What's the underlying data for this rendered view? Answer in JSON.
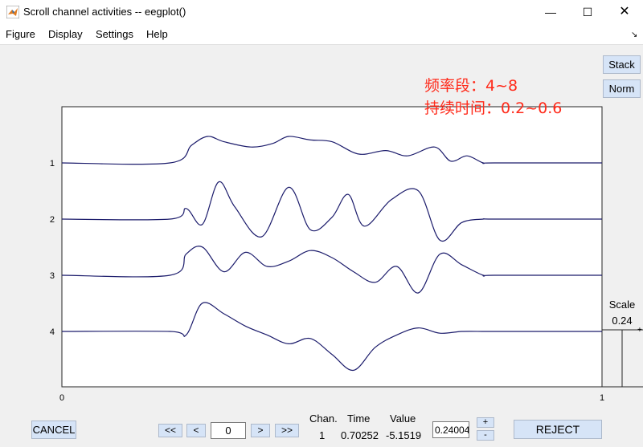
{
  "window": {
    "title": "Scroll channel activities -- eegplot()",
    "controls": {
      "minimize": "—",
      "maximize": "☐",
      "close": "✕"
    }
  },
  "menu": [
    "Figure",
    "Display",
    "Settings",
    "Help"
  ],
  "annotation": {
    "line1": "频率段：4~8",
    "line2": "持续时间：0.2~0.6",
    "color": "#ff2a1a"
  },
  "side_buttons": {
    "stack": "Stack",
    "norm": "Norm"
  },
  "scale": {
    "label": "Scale",
    "value": "0.24"
  },
  "controls": {
    "cancel": "CANCEL",
    "fast_back": "<<",
    "back": "<",
    "position": "0",
    "fwd": ">",
    "fast_fwd": ">>",
    "scale_input": "0.24004",
    "plus": "+",
    "minus": "-",
    "reject": "REJECT"
  },
  "info": {
    "chan_label": "Chan.",
    "time_label": "Time",
    "value_label": "Value",
    "chan": "1",
    "time": "0.70252",
    "value": "-5.1519"
  },
  "chart_data": {
    "type": "line",
    "xlim": [
      0,
      1
    ],
    "x_ticks": [
      "0",
      "1"
    ],
    "y_ticks": [
      "1",
      "2",
      "3",
      "4"
    ],
    "trace_color": "#1b1b6b",
    "series": [
      {
        "name": "1",
        "x": [
          0,
          0.2,
          0.24,
          0.27,
          0.3,
          0.35,
          0.39,
          0.42,
          0.46,
          0.5,
          0.55,
          0.6,
          0.64,
          0.69,
          0.72,
          0.75,
          0.78,
          0.8,
          1.0
        ],
        "y": [
          0,
          0,
          1.0,
          1.5,
          1.2,
          0.9,
          1.1,
          1.5,
          1.3,
          1.2,
          0.5,
          0.7,
          0.4,
          0.9,
          0.1,
          0.4,
          0.0,
          0.0,
          0.0
        ]
      },
      {
        "name": "2",
        "x": [
          0,
          0.2,
          0.23,
          0.26,
          0.29,
          0.32,
          0.37,
          0.42,
          0.46,
          0.5,
          0.53,
          0.56,
          0.61,
          0.66,
          0.7,
          0.74,
          0.78,
          0.8,
          1.0
        ],
        "y": [
          0,
          0,
          0.6,
          -0.3,
          2.1,
          0.7,
          -1.0,
          1.8,
          -0.6,
          0.1,
          1.4,
          -0.4,
          1.1,
          1.6,
          -1.2,
          -0.2,
          0.0,
          0.0,
          0.0
        ]
      },
      {
        "name": "3",
        "x": [
          0,
          0.2,
          0.23,
          0.26,
          0.3,
          0.34,
          0.38,
          0.42,
          0.46,
          0.5,
          0.54,
          0.58,
          0.62,
          0.66,
          0.7,
          0.74,
          0.78,
          0.8,
          1.0
        ],
        "y": [
          0,
          0,
          1.2,
          1.6,
          0.2,
          1.3,
          0.5,
          0.8,
          1.4,
          1.0,
          0.2,
          -0.4,
          0.5,
          -1.0,
          1.2,
          0.6,
          0.0,
          0.0,
          0.0
        ]
      },
      {
        "name": "4",
        "x": [
          0,
          0.2,
          0.23,
          0.26,
          0.3,
          0.34,
          0.38,
          0.42,
          0.46,
          0.5,
          0.54,
          0.58,
          0.62,
          0.66,
          0.7,
          0.74,
          0.78,
          0.8,
          1.0
        ],
        "y": [
          0,
          0,
          -0.2,
          1.6,
          1.0,
          0.3,
          -0.2,
          -0.7,
          -0.4,
          -1.3,
          -2.2,
          -0.9,
          -0.2,
          0.2,
          -0.1,
          0.0,
          0.0,
          0.0,
          0.0
        ]
      }
    ]
  }
}
